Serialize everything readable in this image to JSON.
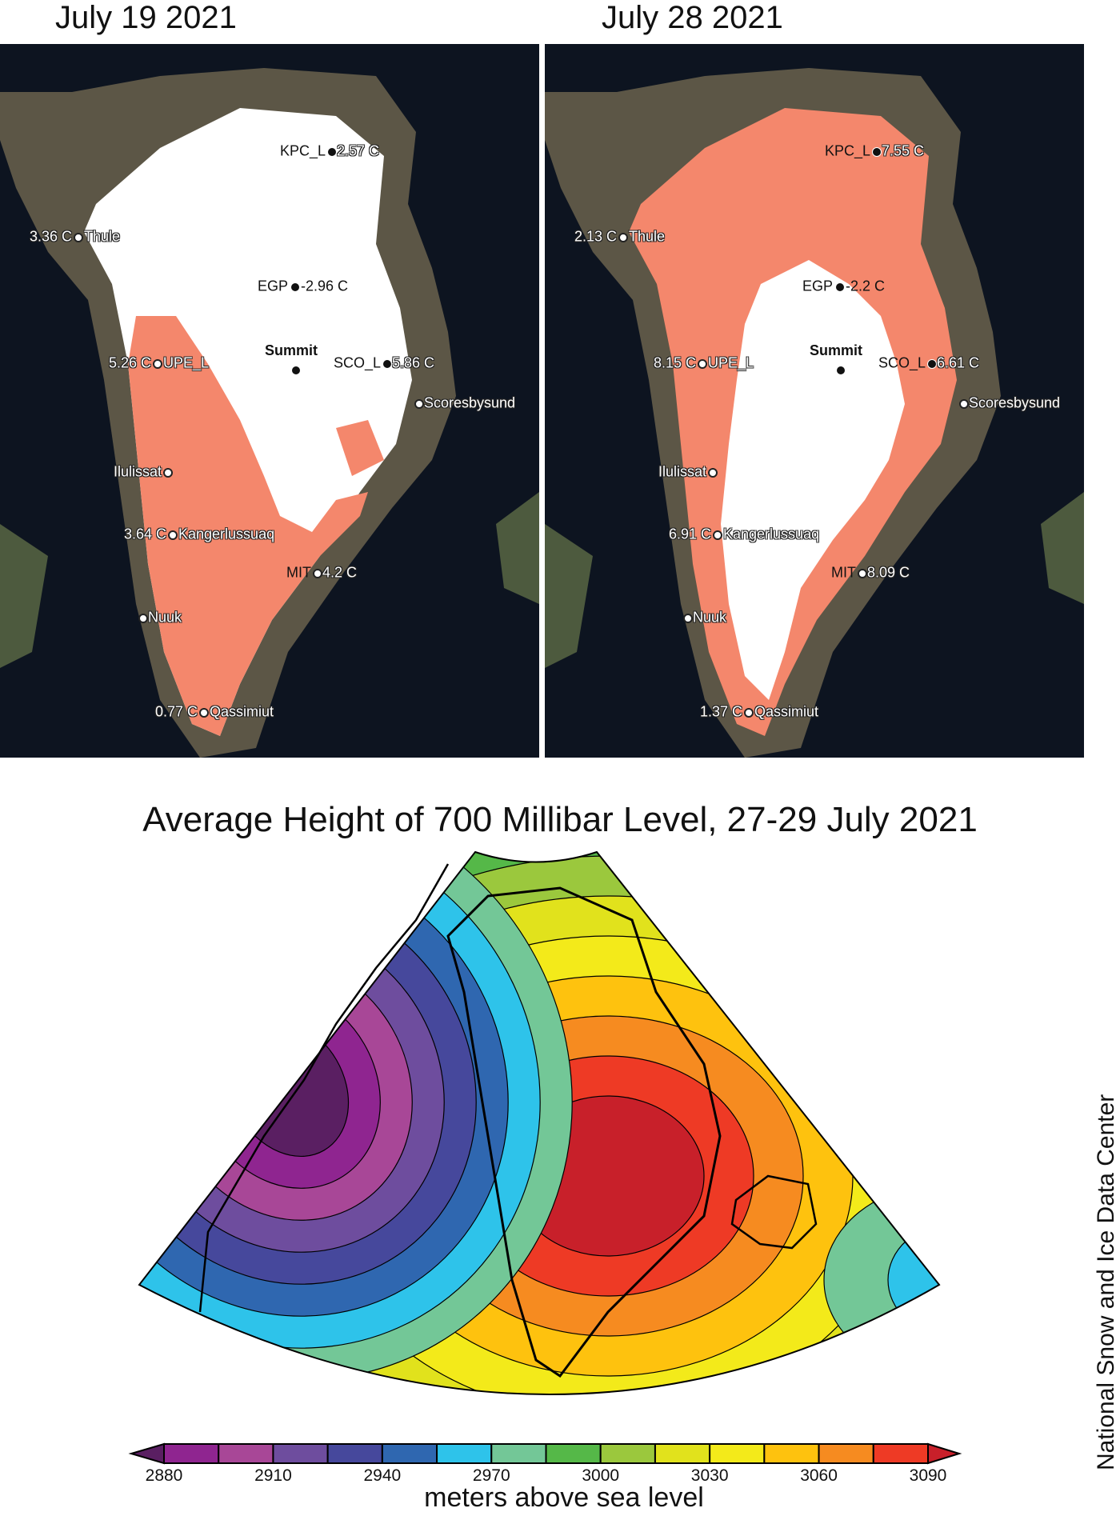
{
  "panels": [
    {
      "title": "July 19 2021",
      "stations": [
        {
          "name": "KPC_L",
          "value": "2.57 C"
        },
        {
          "name": "Thule",
          "value": "3.36 C"
        },
        {
          "name": "EGP",
          "value": "-2.96 C"
        },
        {
          "name": "UPE_L",
          "value": "5.26 C"
        },
        {
          "name": "Summit",
          "value": ""
        },
        {
          "name": "SCO_L",
          "value": "5.86 C"
        },
        {
          "name": "Scoresbysund",
          "value": ""
        },
        {
          "name": "Ilulissat",
          "value": ""
        },
        {
          "name": "Kangerlussuaq",
          "value": "3.64 C"
        },
        {
          "name": "MIT",
          "value": "4.2 C"
        },
        {
          "name": "Nuuk",
          "value": ""
        },
        {
          "name": "Qassimiut",
          "value": "0.77 C"
        }
      ]
    },
    {
      "title": "July 28 2021",
      "stations": [
        {
          "name": "KPC_L",
          "value": "7.55 C"
        },
        {
          "name": "Thule",
          "value": "2.13 C"
        },
        {
          "name": "EGP",
          "value": "-2.2 C"
        },
        {
          "name": "UPE_L",
          "value": "8.15 C"
        },
        {
          "name": "Summit",
          "value": ""
        },
        {
          "name": "SCO_L",
          "value": "6.61 C"
        },
        {
          "name": "Scoresbysund",
          "value": ""
        },
        {
          "name": "Ilulissat",
          "value": ""
        },
        {
          "name": "Kangerlussuaq",
          "value": "6.91 C"
        },
        {
          "name": "MIT",
          "value": "8.09 C"
        },
        {
          "name": "Nuuk",
          "value": ""
        },
        {
          "name": "Qassimiut",
          "value": "1.37 C"
        }
      ]
    }
  ],
  "colors": {
    "melt": "#f4876c",
    "ice": "#ffffff",
    "ocean": "#0d1420"
  },
  "contour": {
    "title": "Average Height of 700 Millibar Level, 27-29 July 2021",
    "units_label": "meters above sea level",
    "tick_labels": [
      "2880",
      "2910",
      "2940",
      "2970",
      "3000",
      "3030",
      "3060",
      "3090"
    ],
    "levels": [
      2880,
      2895,
      2910,
      2925,
      2940,
      2955,
      2970,
      2985,
      3000,
      3015,
      3030,
      3045,
      3060,
      3075,
      3090
    ],
    "band_colors": [
      "#5a1f62",
      "#8f2590",
      "#a84797",
      "#6e4d9e",
      "#46489c",
      "#2f67b0",
      "#2ec3ea",
      "#73c797",
      "#55b848",
      "#9bc83d",
      "#e1e21c",
      "#f3ea1a",
      "#fec20e",
      "#f68b20",
      "#ee3a25",
      "#c8202a"
    ]
  },
  "credit": "National Snow and Ice Data Center"
}
